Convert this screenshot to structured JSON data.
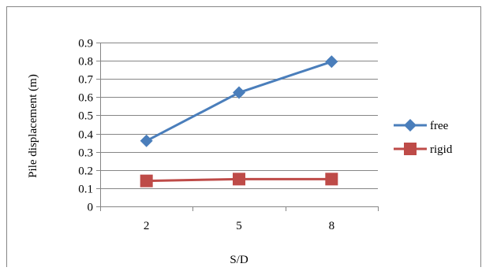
{
  "chart_data": {
    "type": "line",
    "categories": [
      "2",
      "5",
      "8"
    ],
    "xlabel": "S/D",
    "ylabel": "Pile displacement (m)",
    "ylim": [
      0,
      0.9
    ],
    "yticks": [
      "0",
      "0.1",
      "0.2",
      "0.3",
      "0.4",
      "0.5",
      "0.6",
      "0.7",
      "0.8",
      "0.9"
    ],
    "grid": true,
    "legend_position": "right",
    "series": [
      {
        "name": "free",
        "values": [
          0.36,
          0.625,
          0.795
        ],
        "color": "#4a7ebb",
        "marker": "diamond"
      },
      {
        "name": "rigid",
        "values": [
          0.14,
          0.15,
          0.15
        ],
        "color": "#be4b48",
        "marker": "square"
      }
    ]
  }
}
